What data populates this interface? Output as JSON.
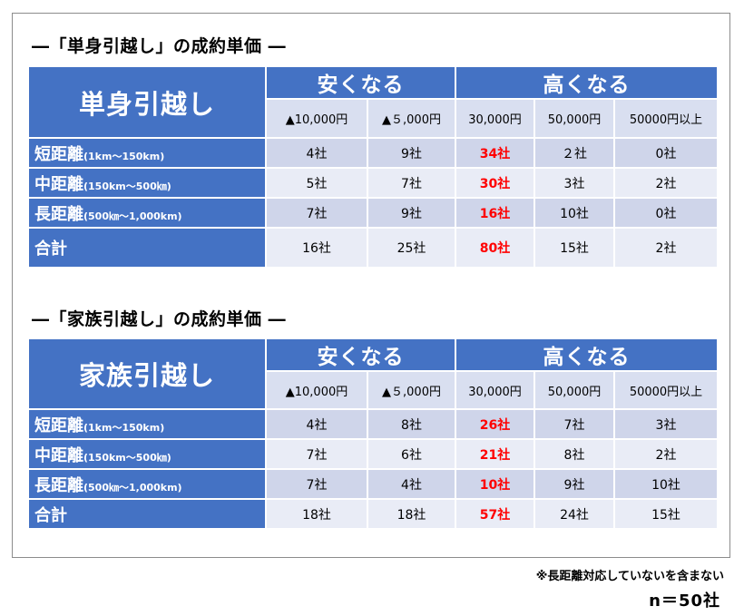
{
  "tables": [
    {
      "section_title": "―「単身引越し」の成約単価 ―",
      "label": "単身引越し",
      "group_cheaper": "安くなる",
      "group_pricier": "高くなる",
      "columns": [
        "▲10,000円",
        "▲５,000円",
        "30,000円",
        "50,000円",
        "50000円以上"
      ],
      "rows": [
        {
          "name": "短距離",
          "range": "(1km～150km)",
          "values": [
            "4社",
            "9社",
            "34社",
            "２社",
            "0社"
          ]
        },
        {
          "name": "中距離",
          "range": "(150km～500㎞)",
          "values": [
            "5社",
            "7社",
            "30社",
            "3社",
            "2社"
          ]
        },
        {
          "name": "長距離",
          "range": "(500㎞～1,000km)",
          "values": [
            "7社",
            "9社",
            "16社",
            "10社",
            "0社"
          ]
        },
        {
          "name": "合計",
          "range": "",
          "values": [
            "16社",
            "25社",
            "80社",
            "15社",
            "2社"
          ]
        }
      ]
    },
    {
      "section_title": "―「家族引越し」の成約単価 ―",
      "label": "家族引越し",
      "group_cheaper": "安くなる",
      "group_pricier": "高くなる",
      "columns": [
        "▲10,000円",
        "▲５,000円",
        "30,000円",
        "50,000円",
        "50000円以上"
      ],
      "rows": [
        {
          "name": "短距離",
          "range": "(1km～150km)",
          "values": [
            "4社",
            "8社",
            "26社",
            "7社",
            "3社"
          ]
        },
        {
          "name": "中距離",
          "range": "(150km～500㎞)",
          "values": [
            "7社",
            "6社",
            "21社",
            "8社",
            "2社"
          ]
        },
        {
          "name": "長距離",
          "range": "(500㎞～1,000km)",
          "values": [
            "7社",
            "4社",
            "10社",
            "9社",
            "10社"
          ]
        },
        {
          "name": "合計",
          "range": "",
          "values": [
            "18社",
            "18社",
            "57社",
            "24社",
            "15社"
          ]
        }
      ]
    }
  ],
  "note": "※長距離対応していないを含まない",
  "n_count": "n＝50社",
  "colors": {
    "header_blue": "#4472c4",
    "highlight_red": "#ff0000",
    "cell_dark": "#cfd5ea",
    "cell_light": "#e9ecf6",
    "subheader": "#d9dff0"
  }
}
